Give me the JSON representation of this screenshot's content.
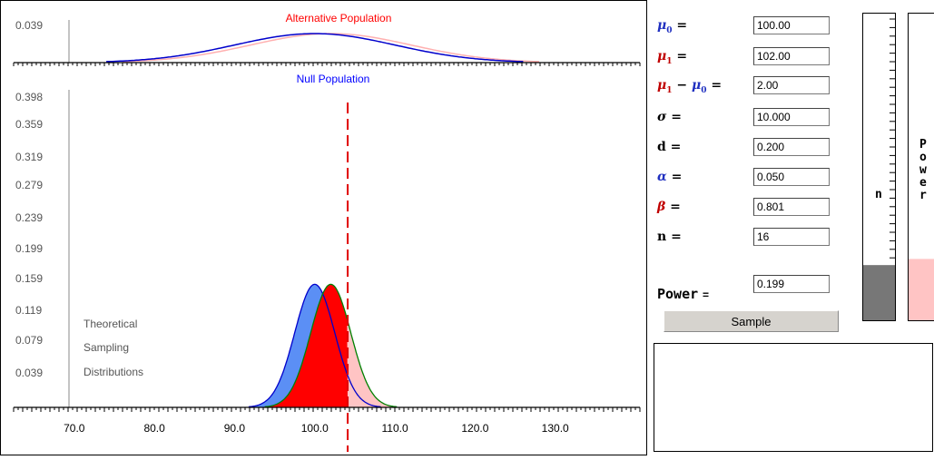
{
  "top_panel": {
    "title": "Alternative Population",
    "y_tick": "0.039",
    "title_color": "#ff0000",
    "alt_curve_color": "#ffb0b0",
    "null_curve_color": "#0000cc"
  },
  "main_panel": {
    "title": "Null Population",
    "title_color": "#0000ff",
    "y_ticks": [
      "0.398",
      "0.359",
      "0.319",
      "0.279",
      "0.239",
      "0.199",
      "0.159",
      "0.119",
      "0.079",
      "0.039"
    ],
    "x_ticks": [
      "70.0",
      "80.0",
      "90.0",
      "100.0",
      "110.0",
      "120.0",
      "130.0"
    ],
    "annotation": [
      "Theoretical",
      "Sampling",
      "Distributions"
    ],
    "critical_value": 104.11,
    "colors": {
      "null_fill": "#5b8ff5",
      "alpha_fill": "#0000ff",
      "beta_fill": "#ff0000",
      "power_fill": "#ffc4c4",
      "critical_line": "#e00000",
      "alt_outline": "#008000"
    }
  },
  "chart_data": {
    "type": "area",
    "xlim": [
      63,
      140
    ],
    "ylim": [
      0,
      0.42
    ],
    "x_tick_values": [
      70,
      80,
      90,
      100,
      110,
      120,
      130
    ],
    "null_distribution": {
      "mean": 100,
      "sd": 2.5
    },
    "alternative_distribution": {
      "mean": 102,
      "sd": 2.5
    },
    "population_sd": 10,
    "critical_value": 104.11
  },
  "controls": {
    "mu0": {
      "label_sym": "μ",
      "label_sub": "0",
      "eq": "=",
      "value": "100.00"
    },
    "mu1": {
      "label_sym": "μ",
      "label_sub": "1",
      "eq": "=",
      "value": "102.00"
    },
    "diff": {
      "sym_a": "μ",
      "sub_a": "1",
      "minus": "−",
      "sym_b": "μ",
      "sub_b": "0",
      "eq": "=",
      "value": "2.00"
    },
    "sigma": {
      "label": "σ",
      "eq": "=",
      "value": "10.000"
    },
    "d": {
      "label": "d",
      "eq": "=",
      "value": "0.200"
    },
    "alpha": {
      "label": "α",
      "eq": "=",
      "value": "0.050"
    },
    "beta": {
      "label": "β",
      "eq": "=",
      "value": "0.801"
    },
    "n": {
      "label": "n",
      "eq": "=",
      "value": "16"
    },
    "power": {
      "label": "Power",
      "eq": "=",
      "value": "0.199"
    },
    "sample_button": "Sample"
  },
  "meters": {
    "n": {
      "label": "n",
      "fill_fraction": 0.18,
      "fill_color": "#777777"
    },
    "power": {
      "label": [
        "P",
        "o",
        "w",
        "e",
        "r"
      ],
      "fill_fraction": 0.2,
      "fill_color": "#ffc4c4"
    }
  }
}
